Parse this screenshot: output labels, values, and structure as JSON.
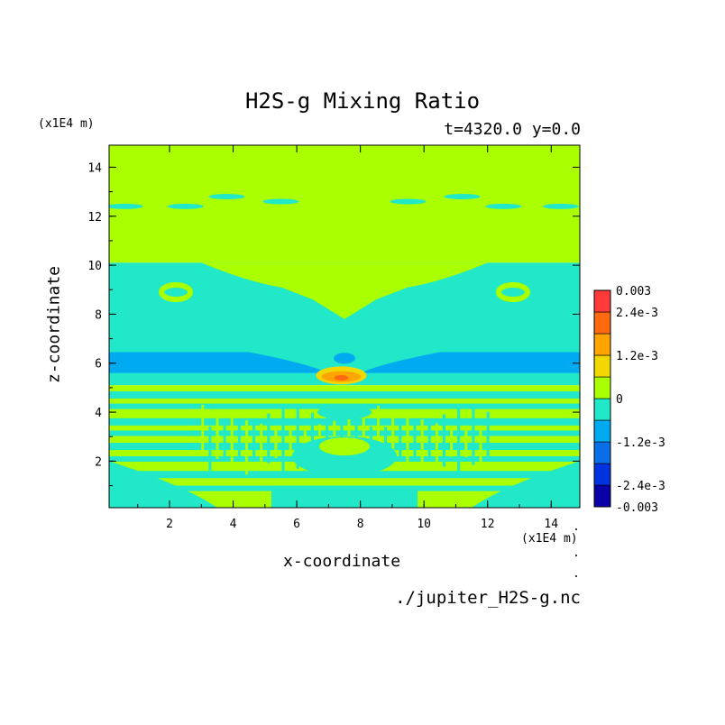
{
  "chart_data": {
    "type": "heatmap",
    "title": "H2S-g Mixing Ratio",
    "subtitle": "t=4320.0 y=0.0",
    "xlabel": "x-coordinate",
    "ylabel": "z-coordinate",
    "x_unit": "(x1E4 m)",
    "y_unit": "(x1E4 m)",
    "source": "./jupiter_H2S-g.nc",
    "xlim": [
      0.1,
      14.9
    ],
    "ylim": [
      0.1,
      14.9
    ],
    "x_ticks": [
      2,
      4,
      6,
      8,
      10,
      12,
      14
    ],
    "y_ticks": [
      2,
      4,
      6,
      8,
      10,
      12,
      14
    ],
    "colorbar": {
      "levels": [
        -0.003,
        -0.0024,
        -0.0018,
        -0.0012,
        -0.0006,
        0,
        0.0006,
        0.0012,
        0.0018,
        0.0024,
        0.003
      ],
      "colors": [
        "#0a00a8",
        "#0033e0",
        "#0a6ee8",
        "#00aaf0",
        "#20e8c8",
        "#aaff00",
        "#f0d800",
        "#ffa400",
        "#ff6a10",
        "#ff3a3a"
      ],
      "tick_values": [
        0.003,
        0.0024,
        0.0012,
        0,
        -0.0012,
        -0.0024,
        -0.003
      ],
      "tick_labels": [
        "0.003",
        "2.4e-3",
        "1.2e-3",
        "0",
        "-1.2e-3",
        "-2.4e-3",
        "-0.003"
      ]
    }
  }
}
